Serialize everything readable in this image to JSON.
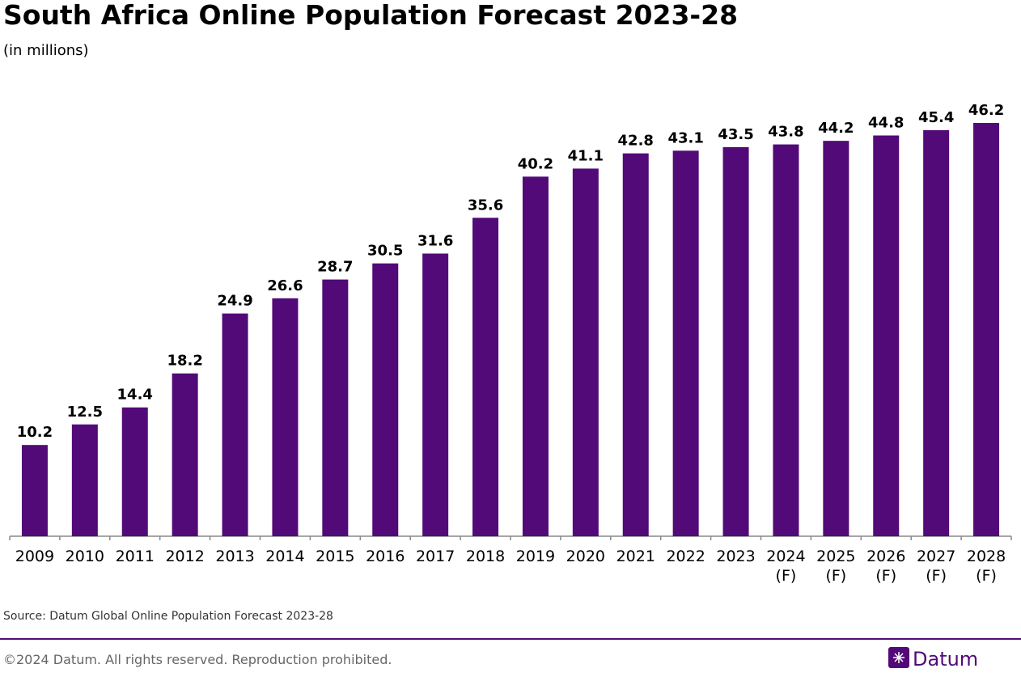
{
  "chart_data": {
    "type": "bar",
    "title": "South Africa Online Population Forecast 2023-28",
    "subtitle": "(in millions)",
    "categories": [
      "2009",
      "2010",
      "2011",
      "2012",
      "2013",
      "2014",
      "2015",
      "2016",
      "2017",
      "2018",
      "2019",
      "2020",
      "2021",
      "2022",
      "2023",
      "2024 (F)",
      "2025 (F)",
      "2026 (F)",
      "2027 (F)",
      "2028 (F)"
    ],
    "values": [
      10.2,
      12.5,
      14.4,
      18.2,
      24.9,
      26.6,
      28.7,
      30.5,
      31.6,
      35.6,
      40.2,
      41.1,
      42.8,
      43.1,
      43.5,
      43.8,
      44.2,
      44.8,
      45.4,
      46.2
    ],
    "color": "#520a78",
    "ylim": [
      0,
      50
    ],
    "source": "Source: Datum Global Online Population Forecast 2023-28"
  },
  "footer": {
    "copyright": "©2024 Datum. All rights reserved. Reproduction prohibited.",
    "brand": "Datum"
  }
}
